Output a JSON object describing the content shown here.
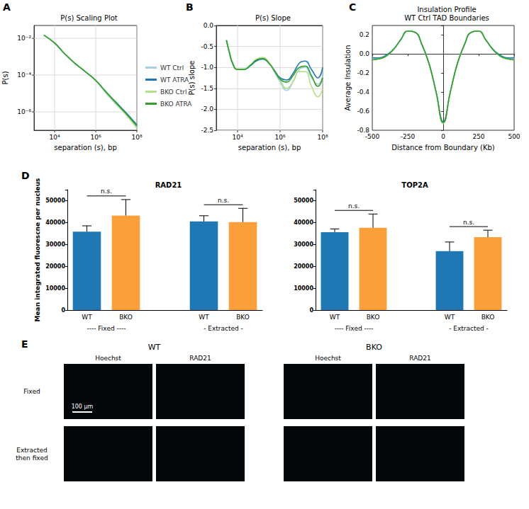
{
  "chart_data": [
    {
      "panel": "A",
      "type": "line",
      "title": "P(s) Scaling Plot",
      "x_label": "separation (s), bp",
      "y_label": "P(s)",
      "log": true,
      "grid": true,
      "legend": "right",
      "xlim": [
        1000,
        100000000
      ],
      "ylim": [
        1e-07,
        0.05
      ],
      "xticks": [
        {
          "value": 10000,
          "label": "10⁴"
        },
        {
          "value": 1000000,
          "label": "10⁶"
        },
        {
          "value": 100000000,
          "label": "10⁸"
        }
      ],
      "yticks": [
        {
          "value": 1e-06,
          "label": "10⁻⁶"
        },
        {
          "value": 0.0001,
          "label": "10⁻⁴"
        },
        {
          "value": 0.01,
          "label": "10⁻²"
        }
      ],
      "x": [
        3000,
        10000,
        30000,
        100000,
        300000,
        1000000,
        3000000,
        10000000,
        30000000,
        100000000
      ],
      "series": [
        {
          "name": "WT Ctrl",
          "color": "#a6cee3",
          "values": [
            0.015,
            0.0055,
            0.0015,
            0.00042,
            0.00016,
            5e-05,
            1.1e-05,
            2.5e-06,
            7e-07,
            1.4e-07
          ]
        },
        {
          "name": "WT ATRA",
          "color": "#1f78b4",
          "values": [
            0.015,
            0.0055,
            0.0015,
            0.00042,
            0.00016,
            5.2e-05,
            1.3e-05,
            3.2e-06,
            9e-07,
            2e-07
          ]
        },
        {
          "name": "BKO Ctrl",
          "color": "#b2df8a",
          "values": [
            0.015,
            0.0056,
            0.0015,
            0.00043,
            0.00016,
            5e-05,
            1.2e-05,
            2.7e-06,
            7e-07,
            1.3e-07
          ]
        },
        {
          "name": "BKO ATRA",
          "color": "#33a02c",
          "values": [
            0.015,
            0.0056,
            0.0015,
            0.00043,
            0.00016,
            5.1e-05,
            1.3e-05,
            3e-06,
            8e-07,
            1.7e-07
          ]
        }
      ]
    },
    {
      "panel": "B",
      "type": "line",
      "title": "P(s) Slope",
      "x_label": "separation (s), bp",
      "y_label": "P(s) slope",
      "log": "x",
      "grid": true,
      "xlim": [
        1000,
        100000000
      ],
      "ylim": [
        -2.5,
        0
      ],
      "xticks": [
        {
          "value": 10000,
          "label": "10⁴"
        },
        {
          "value": 1000000,
          "label": "10⁶"
        },
        {
          "value": 100000000,
          "label": "10⁸"
        }
      ],
      "yticks": [
        -2.5,
        {
          "value": -2,
          "label": "-2.0"
        },
        -1.5,
        {
          "value": -1,
          "label": "-1.0"
        },
        -0.5,
        {
          "value": 0,
          "label": "0.0"
        }
      ],
      "x": [
        3000,
        4000,
        6000,
        10000,
        20000,
        40000,
        80000,
        150000,
        300000,
        600000,
        1000000,
        2000000,
        4000000,
        8000000,
        15000000,
        30000000,
        60000000,
        100000000
      ],
      "series": [
        {
          "name": "WT Ctrl",
          "color": "#a6cee3",
          "values": [
            -0.35,
            -0.62,
            -0.92,
            -1.05,
            -1.05,
            -0.95,
            -0.82,
            -0.78,
            -0.9,
            -1.15,
            -1.35,
            -1.55,
            -1.35,
            -1.05,
            -1.0,
            -1.25,
            -1.4,
            -1.2
          ]
        },
        {
          "name": "WT ATRA",
          "color": "#1f78b4",
          "values": [
            -0.35,
            -0.62,
            -0.92,
            -1.05,
            -1.05,
            -0.96,
            -0.84,
            -0.8,
            -0.9,
            -1.1,
            -1.25,
            -1.3,
            -1.15,
            -0.9,
            -0.85,
            -1.05,
            -1.25,
            -1.0
          ]
        },
        {
          "name": "BKO Ctrl",
          "color": "#b2df8a",
          "values": [
            -0.35,
            -0.6,
            -0.9,
            -1.04,
            -1.04,
            -0.94,
            -0.8,
            -0.76,
            -0.88,
            -1.12,
            -1.3,
            -1.5,
            -1.35,
            -1.1,
            -1.1,
            -1.45,
            -1.7,
            -1.5
          ]
        },
        {
          "name": "BKO ATRA",
          "color": "#33a02c",
          "values": [
            -0.35,
            -0.61,
            -0.91,
            -1.05,
            -1.05,
            -0.95,
            -0.82,
            -0.79,
            -0.9,
            -1.12,
            -1.28,
            -1.35,
            -1.2,
            -1.0,
            -0.97,
            -1.2,
            -1.45,
            -1.25
          ]
        }
      ]
    },
    {
      "panel": "C",
      "type": "line",
      "title": "Insulation Profile\nWT Ctrl TAD Boundaries",
      "x_label": "Distance from Boundary (Kb)",
      "y_label": "Average Insulation",
      "grid": false,
      "xlim": [
        -500,
        500
      ],
      "ylim": [
        -0.8,
        0.3
      ],
      "xticks": [
        -500,
        -250,
        0,
        250,
        500
      ],
      "yticks": [
        -0.8,
        -0.6,
        -0.4,
        -0.2,
        {
          "value": 0,
          "label": "0.0"
        },
        0.2
      ],
      "x": [
        -500,
        -450,
        -400,
        -350,
        -300,
        -250,
        -200,
        -150,
        -100,
        -50,
        0,
        50,
        100,
        150,
        200,
        250,
        300,
        350,
        400,
        450,
        500
      ],
      "series": [
        {
          "name": "WT Ctrl",
          "color": "#a6cee3",
          "values": [
            -0.05,
            -0.04,
            -0.01,
            0.05,
            0.15,
            0.24,
            0.23,
            0.1,
            -0.1,
            -0.4,
            -0.72,
            -0.4,
            -0.1,
            0.1,
            0.23,
            0.24,
            0.15,
            0.05,
            -0.01,
            -0.04,
            -0.05
          ]
        },
        {
          "name": "WT ATRA",
          "color": "#1f78b4",
          "values": [
            -0.04,
            -0.04,
            -0.01,
            0.05,
            0.15,
            0.24,
            0.23,
            0.1,
            -0.1,
            -0.4,
            -0.71,
            -0.4,
            -0.1,
            0.1,
            0.23,
            0.24,
            0.15,
            0.05,
            -0.01,
            -0.04,
            -0.04
          ]
        },
        {
          "name": "BKO Ctrl",
          "color": "#b2df8a",
          "values": [
            -0.06,
            -0.05,
            -0.02,
            0.05,
            0.15,
            0.24,
            0.23,
            0.1,
            -0.1,
            -0.41,
            -0.73,
            -0.41,
            -0.1,
            0.1,
            0.23,
            0.24,
            0.15,
            0.05,
            -0.02,
            -0.05,
            -0.06
          ]
        },
        {
          "name": "BKO ATRA",
          "color": "#33a02c",
          "values": [
            -0.06,
            -0.05,
            -0.02,
            0.05,
            0.15,
            0.24,
            0.23,
            0.1,
            -0.1,
            -0.4,
            -0.72,
            -0.4,
            -0.1,
            0.1,
            0.23,
            0.24,
            0.15,
            0.05,
            -0.02,
            -0.05,
            -0.06
          ]
        }
      ]
    },
    {
      "panel": "D",
      "type": "bar",
      "title": "RAD21",
      "y_label": "Mean integrated fluorescne per nucleus",
      "grid": false,
      "categories": [
        "WT",
        "BKO",
        null,
        "WT",
        "BKO"
      ],
      "values": [
        35800,
        43200,
        null,
        40500,
        40200
      ],
      "errors": [
        2700,
        7300,
        null,
        2600,
        6300
      ],
      "colors": [
        "#1f77b4",
        "#fb9f3a",
        null,
        "#1f77b4",
        "#fb9f3a"
      ],
      "groups": [
        {
          "label": "---- Fixed ----",
          "categories": [
            0,
            1
          ]
        },
        {
          "label": "- Extracted -",
          "categories": [
            3,
            4
          ]
        }
      ],
      "annotations": [
        {
          "text": "n.s.",
          "categories": [
            0,
            1
          ]
        },
        {
          "text": "n.s.",
          "categories": [
            3,
            4
          ]
        }
      ],
      "ylim": [
        0,
        55000
      ],
      "yticks": [
        0,
        10000,
        20000,
        30000,
        40000,
        50000
      ]
    },
    {
      "type": "bar",
      "title": "TOP2A",
      "grid": false,
      "categories": [
        "WT",
        "BKO",
        null,
        "WT",
        "BKO"
      ],
      "values": [
        35600,
        37600,
        null,
        26900,
        33300
      ],
      "errors": [
        1500,
        6300,
        null,
        4200,
        3200
      ],
      "colors": [
        "#1f77b4",
        "#fb9f3a",
        null,
        "#1f77b4",
        "#fb9f3a"
      ],
      "groups": [
        {
          "label": "---- Fixed ----",
          "categories": [
            0,
            1
          ]
        },
        {
          "label": "- Extracted -",
          "categories": [
            3,
            4
          ]
        }
      ],
      "annotations": [
        {
          "text": "n.s.",
          "categories": [
            0,
            1
          ]
        },
        {
          "text": "n.s.",
          "categories": [
            3,
            4
          ]
        }
      ],
      "ylim": [
        0,
        55000
      ],
      "yticks": [
        0,
        10000,
        20000,
        30000,
        40000,
        50000
      ]
    }
  ],
  "images": {
    "panel": "E",
    "groups": [
      "WT",
      "BKO"
    ],
    "channels": [
      "Hoechst",
      "RAD21"
    ],
    "rows": [
      "Fixed",
      "Extracted\nthen fixed"
    ],
    "scale_bar": "100 µm"
  }
}
